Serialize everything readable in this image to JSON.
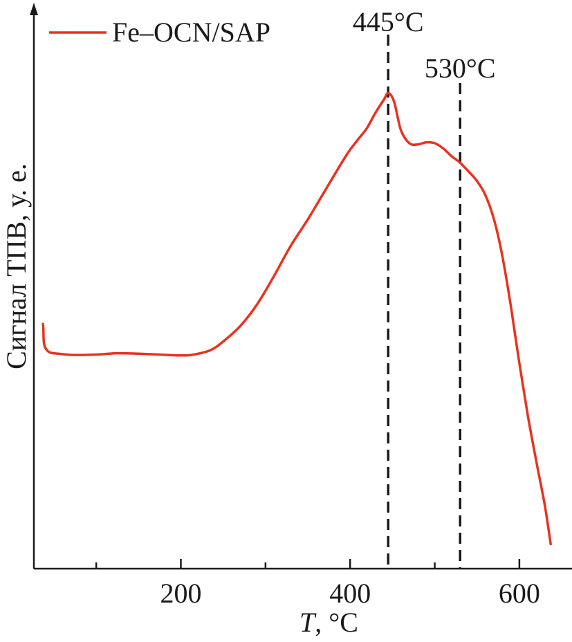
{
  "chart_data": {
    "type": "line",
    "title": "",
    "xlabel_italic": "T",
    "xlabel_rest": ", °C",
    "ylabel": "Сигнал ТПВ, у. е.",
    "xlim": [
      30,
      655
    ],
    "ylim": [
      0,
      100
    ],
    "x_major_ticks": [
      200,
      400,
      600
    ],
    "x_major_tick_labels": [
      "200",
      "400",
      "600"
    ],
    "x_minor_ticks": [
      100,
      300,
      500
    ],
    "legend": {
      "position": "top-left",
      "entries": [
        "Fe–OCN/SAP"
      ]
    },
    "colors": {
      "series": "#e8321e",
      "axis": "#1a1a1a",
      "vline": "#1a1a1a"
    },
    "annotations": [
      {
        "x": 445,
        "label": "445°C"
      },
      {
        "x": 530,
        "label": "530°C"
      }
    ],
    "series": [
      {
        "name": "Fe–OCN/SAP",
        "x": [
          37,
          37.5,
          38,
          40,
          45,
          55,
          75,
          100,
          125,
          150,
          175,
          200,
          215,
          235,
          250,
          270,
          290,
          310,
          330,
          350,
          370,
          390,
          400,
          410,
          420,
          430,
          440,
          445,
          452,
          460,
          470,
          480,
          490,
          500,
          510,
          520,
          530,
          540,
          550,
          560,
          570,
          580,
          590,
          600,
          610,
          620,
          630,
          637
        ],
        "y": [
          42,
          41,
          38,
          36.5,
          35.5,
          35.2,
          34.9,
          35.0,
          35.3,
          35.2,
          35.0,
          34.8,
          35.0,
          36.0,
          38.0,
          41.5,
          46.5,
          53.0,
          60.0,
          66.0,
          72.5,
          79.0,
          82.0,
          84.5,
          87.0,
          90.5,
          93.5,
          95.0,
          93.0,
          86.5,
          83.5,
          83.2,
          83.7,
          83.5,
          82.3,
          80.5,
          79.0,
          77.0,
          74.8,
          71.5,
          66.0,
          57.5,
          46.0,
          33.0,
          21.0,
          10.5,
          0.5,
          -8.5
        ]
      }
    ]
  }
}
